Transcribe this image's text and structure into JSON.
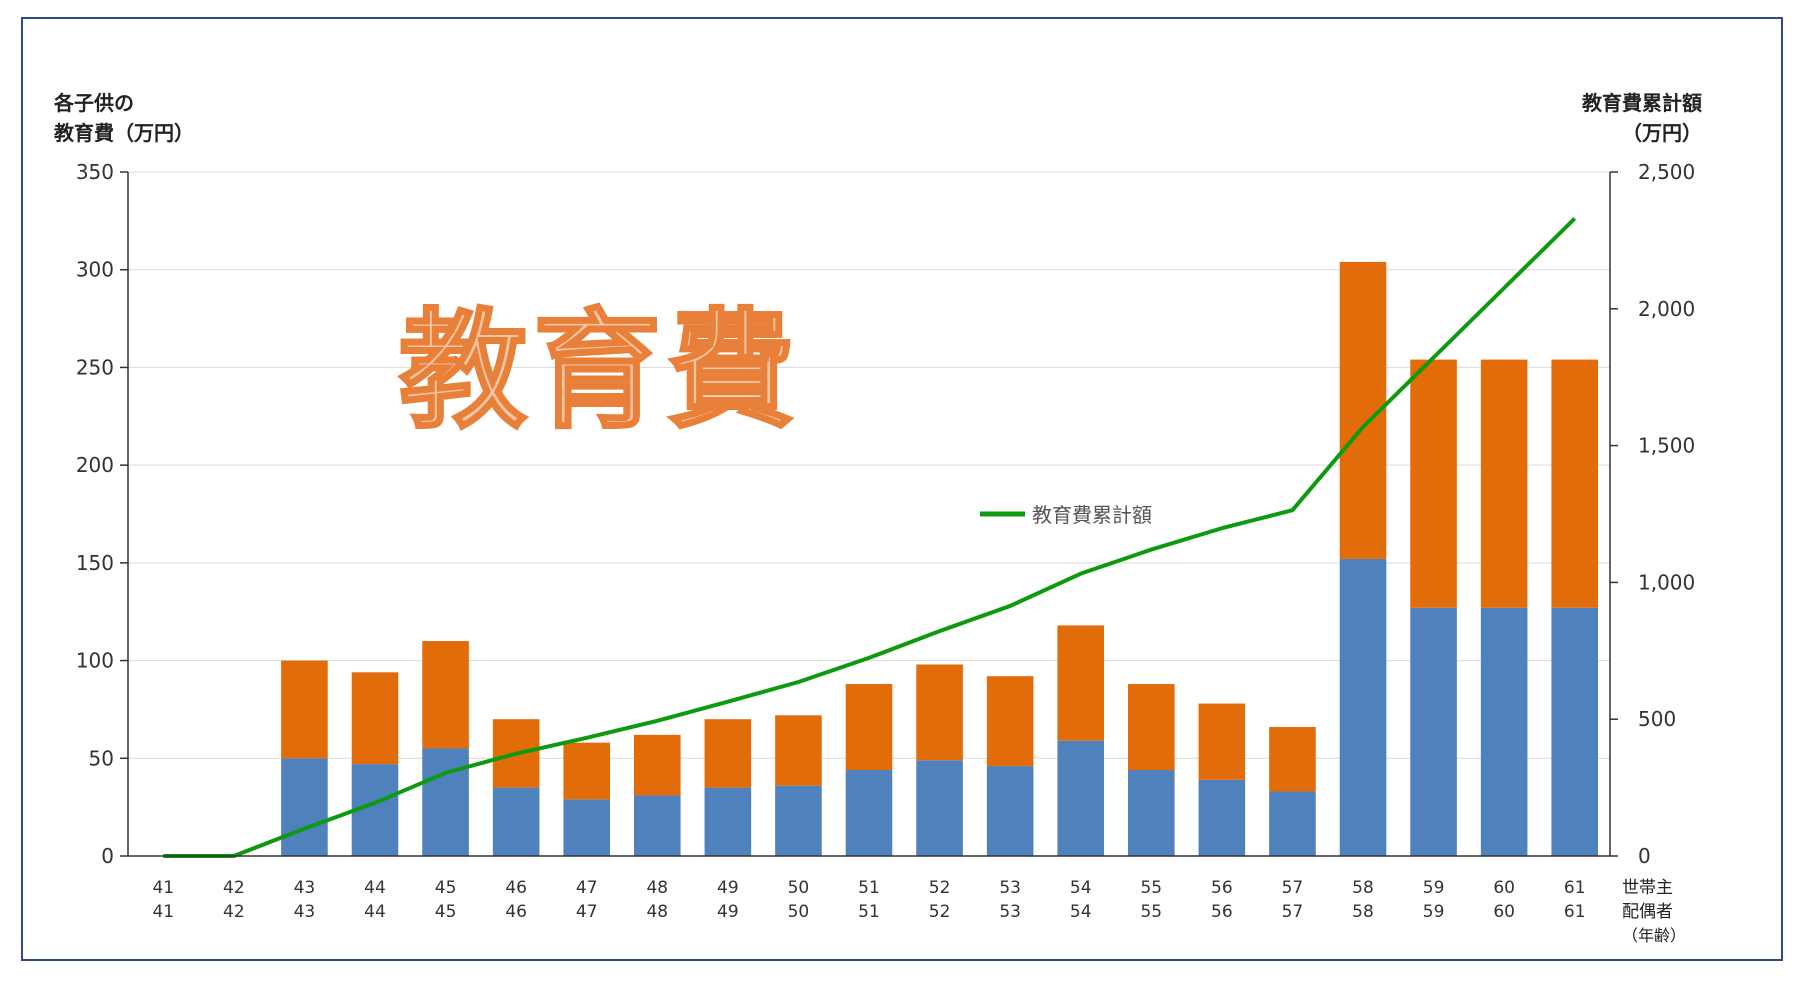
{
  "chart_data": {
    "type": "bar",
    "stacked": true,
    "watermark_title": "教育費",
    "left_axis_label": [
      "各子供の",
      "教育費（万円）"
    ],
    "right_axis_label": [
      "教育費累計額",
      "（万円）"
    ],
    "x_axis_legend": [
      "世帯主",
      "配偶者",
      "（年齢）"
    ],
    "categories": [
      "41",
      "42",
      "43",
      "44",
      "45",
      "46",
      "47",
      "48",
      "49",
      "50",
      "51",
      "52",
      "53",
      "54",
      "55",
      "56",
      "57",
      "58",
      "59",
      "60",
      "61"
    ],
    "category_rows": [
      [
        "41",
        "42",
        "43",
        "44",
        "45",
        "46",
        "47",
        "48",
        "49",
        "50",
        "51",
        "52",
        "53",
        "54",
        "55",
        "56",
        "57",
        "58",
        "59",
        "60",
        "61"
      ],
      [
        "41",
        "42",
        "43",
        "44",
        "45",
        "46",
        "47",
        "48",
        "49",
        "50",
        "51",
        "52",
        "53",
        "54",
        "55",
        "56",
        "57",
        "58",
        "59",
        "60",
        "61"
      ]
    ],
    "ylim_left": [
      0,
      350
    ],
    "yticks_left": [
      0,
      50,
      100,
      150,
      200,
      250,
      300,
      350
    ],
    "ytick_labels_left": [
      "0",
      "50",
      "100",
      "150",
      "200",
      "250",
      "300",
      "350"
    ],
    "ylim_right": [
      0,
      2500
    ],
    "yticks_right": [
      0,
      500,
      1000,
      1500,
      2000,
      2500
    ],
    "ytick_labels_right": [
      "0",
      "500",
      "1,000",
      "1,500",
      "2,000",
      "2,500"
    ],
    "grid": true,
    "series": [
      {
        "kind": "bar",
        "color": "#4F81BD",
        "values": [
          0,
          0,
          50,
          47,
          55,
          35,
          29,
          31,
          35,
          36,
          44,
          49,
          46,
          59,
          44,
          39,
          33,
          152,
          127,
          127,
          127
        ]
      },
      {
        "kind": "bar",
        "color": "#E36C0A",
        "values": [
          0,
          0,
          50,
          47,
          55,
          35,
          29,
          31,
          35,
          36,
          44,
          49,
          46,
          59,
          44,
          39,
          33,
          152,
          127,
          127,
          127
        ]
      },
      {
        "kind": "line",
        "name": "教育費累計額",
        "axis": "right",
        "color": "#0E9A0E",
        "values": [
          0,
          0,
          100,
          194,
          304,
          374,
          432,
          494,
          564,
          636,
          724,
          822,
          914,
          1032,
          1120,
          1198,
          1264,
          1568,
          1822,
          2076,
          2330
        ]
      }
    ],
    "legend_position": "center"
  }
}
